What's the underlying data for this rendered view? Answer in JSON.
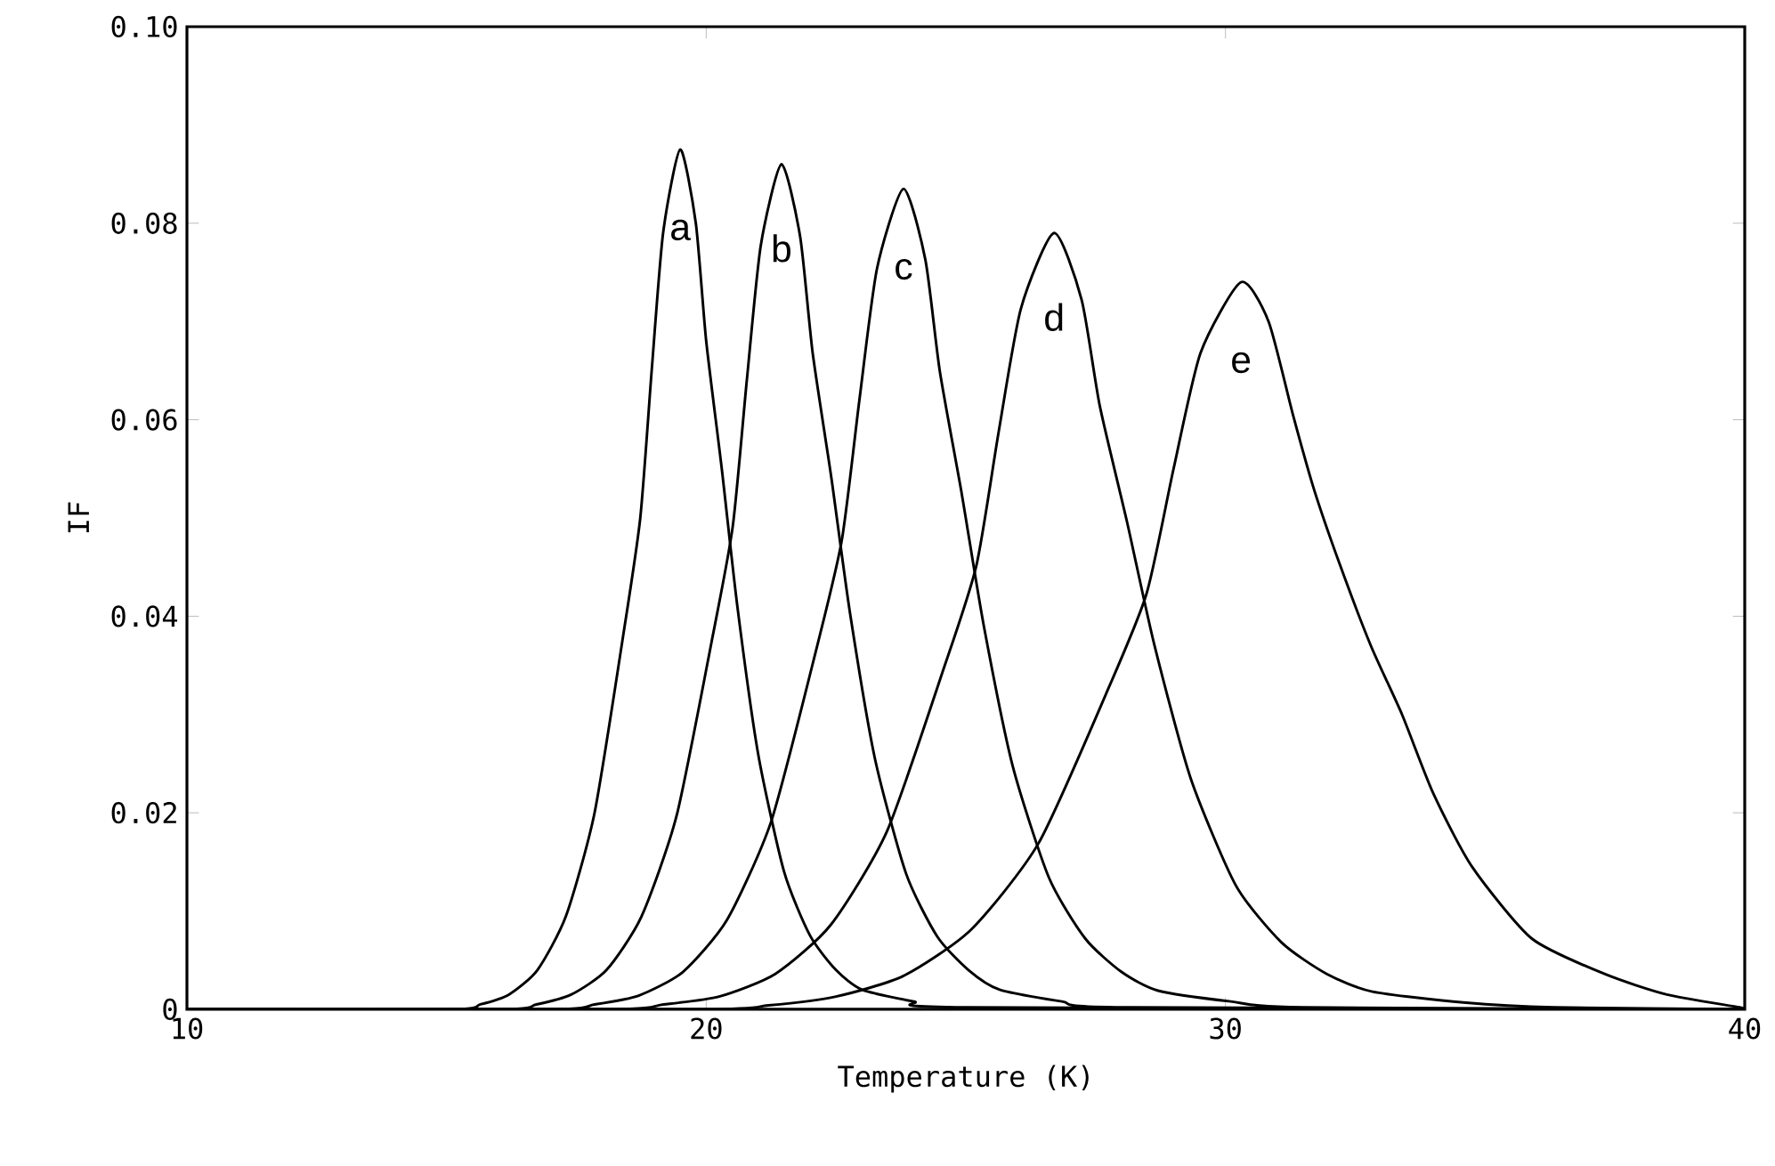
{
  "chart_data": {
    "type": "line",
    "xlabel": "Temperature (K)",
    "ylabel": "IF",
    "xlim": [
      10,
      40
    ],
    "ylim": [
      0,
      0.1
    ],
    "xticks": [
      10,
      20,
      30,
      40
    ],
    "yticks": [
      0,
      {
        "value": 0.02,
        "label": "0.02"
      },
      {
        "value": 0.04,
        "label": "0.04"
      },
      {
        "value": 0.06,
        "label": "0.06"
      },
      {
        "value": 0.08,
        "label": "0.08"
      },
      {
        "value": 0.1,
        "label": "0.10"
      }
    ],
    "grid": false,
    "legend": false,
    "marker": "none",
    "line_style": "solid",
    "series": [
      {
        "name": "a",
        "color": "#000000",
        "x": [
          10,
          15.1,
          15.65,
          16.2,
          16.75,
          17.3,
          17.85,
          18.4,
          18.73,
          18.95,
          19.17,
          19.5,
          19.8,
          20.0,
          20.3,
          20.6,
          21.0,
          21.5,
          22.0,
          22.5,
          23.0,
          24.0,
          25.0,
          40
        ],
        "values": [
          0,
          0,
          0.0005,
          0.0015,
          0.004,
          0.0095,
          0.02,
          0.038,
          0.05,
          0.065,
          0.079,
          0.0875,
          0.08,
          0.068,
          0.055,
          0.041,
          0.026,
          0.014,
          0.0075,
          0.004,
          0.002,
          0.0008,
          0.0002,
          0
        ]
      },
      {
        "name": "b",
        "color": "#000000",
        "x": [
          10,
          16.05,
          16.73,
          17.4,
          18.08,
          18.75,
          19.43,
          20.1,
          20.51,
          20.78,
          21.05,
          21.45,
          21.81,
          22.05,
          22.41,
          22.77,
          23.25,
          23.85,
          24.45,
          25.05,
          25.65,
          26.85,
          28.05,
          40
        ],
        "values": [
          0,
          0,
          0.0005,
          0.0015,
          0.004,
          0.0094,
          0.0197,
          0.0373,
          0.0491,
          0.0639,
          0.0777,
          0.086,
          0.0786,
          0.0668,
          0.0541,
          0.0403,
          0.0255,
          0.0138,
          0.0074,
          0.004,
          0.002,
          0.0008,
          0.0002,
          0
        ]
      },
      {
        "name": "c",
        "color": "#000000",
        "x": [
          10,
          17.0,
          17.85,
          18.7,
          19.55,
          20.4,
          21.25,
          22.1,
          22.61,
          22.95,
          23.29,
          23.8,
          24.22,
          24.5,
          24.92,
          25.34,
          25.9,
          26.6,
          27.3,
          28.0,
          28.7,
          30.1,
          31.5,
          40
        ],
        "values": [
          0,
          0,
          0.0005,
          0.0014,
          0.0038,
          0.0091,
          0.0191,
          0.0362,
          0.0477,
          0.062,
          0.0754,
          0.0835,
          0.0763,
          0.0649,
          0.0525,
          0.0392,
          0.0248,
          0.0134,
          0.0072,
          0.0038,
          0.0019,
          0.0008,
          0.0002,
          0
        ]
      },
      {
        "name": "d",
        "color": "#000000",
        "x": [
          10,
          18.1,
          19.18,
          20.25,
          21.33,
          22.4,
          23.48,
          24.55,
          25.2,
          25.63,
          26.06,
          26.7,
          27.23,
          27.58,
          28.1,
          28.63,
          29.33,
          30.2,
          31.08,
          31.95,
          32.83,
          34.58,
          36.33,
          40
        ],
        "values": [
          0,
          0,
          0.0005,
          0.0013,
          0.0036,
          0.0086,
          0.0181,
          0.0343,
          0.0451,
          0.0587,
          0.0713,
          0.079,
          0.0722,
          0.0614,
          0.0497,
          0.0371,
          0.0235,
          0.0126,
          0.0068,
          0.0036,
          0.0018,
          0.0007,
          0.0002,
          0
        ]
      },
      {
        "name": "e",
        "color": "#000000",
        "x": [
          10,
          19.9,
          21.2,
          22.5,
          23.8,
          25.1,
          26.4,
          27.7,
          28.48,
          29.0,
          29.52,
          30.3,
          30.83,
          31.3,
          31.7,
          32.2,
          32.8,
          33.4,
          34.0,
          34.75,
          35.9,
          37.3,
          38.5,
          39.9,
          40
        ],
        "values": [
          0,
          0,
          0.0004,
          0.0013,
          0.0034,
          0.0081,
          0.0169,
          0.0321,
          0.0423,
          0.055,
          0.0668,
          0.074,
          0.07,
          0.0605,
          0.053,
          0.0453,
          0.037,
          0.03,
          0.022,
          0.0145,
          0.0072,
          0.0036,
          0.0015,
          0.0002,
          0
        ]
      }
    ]
  }
}
